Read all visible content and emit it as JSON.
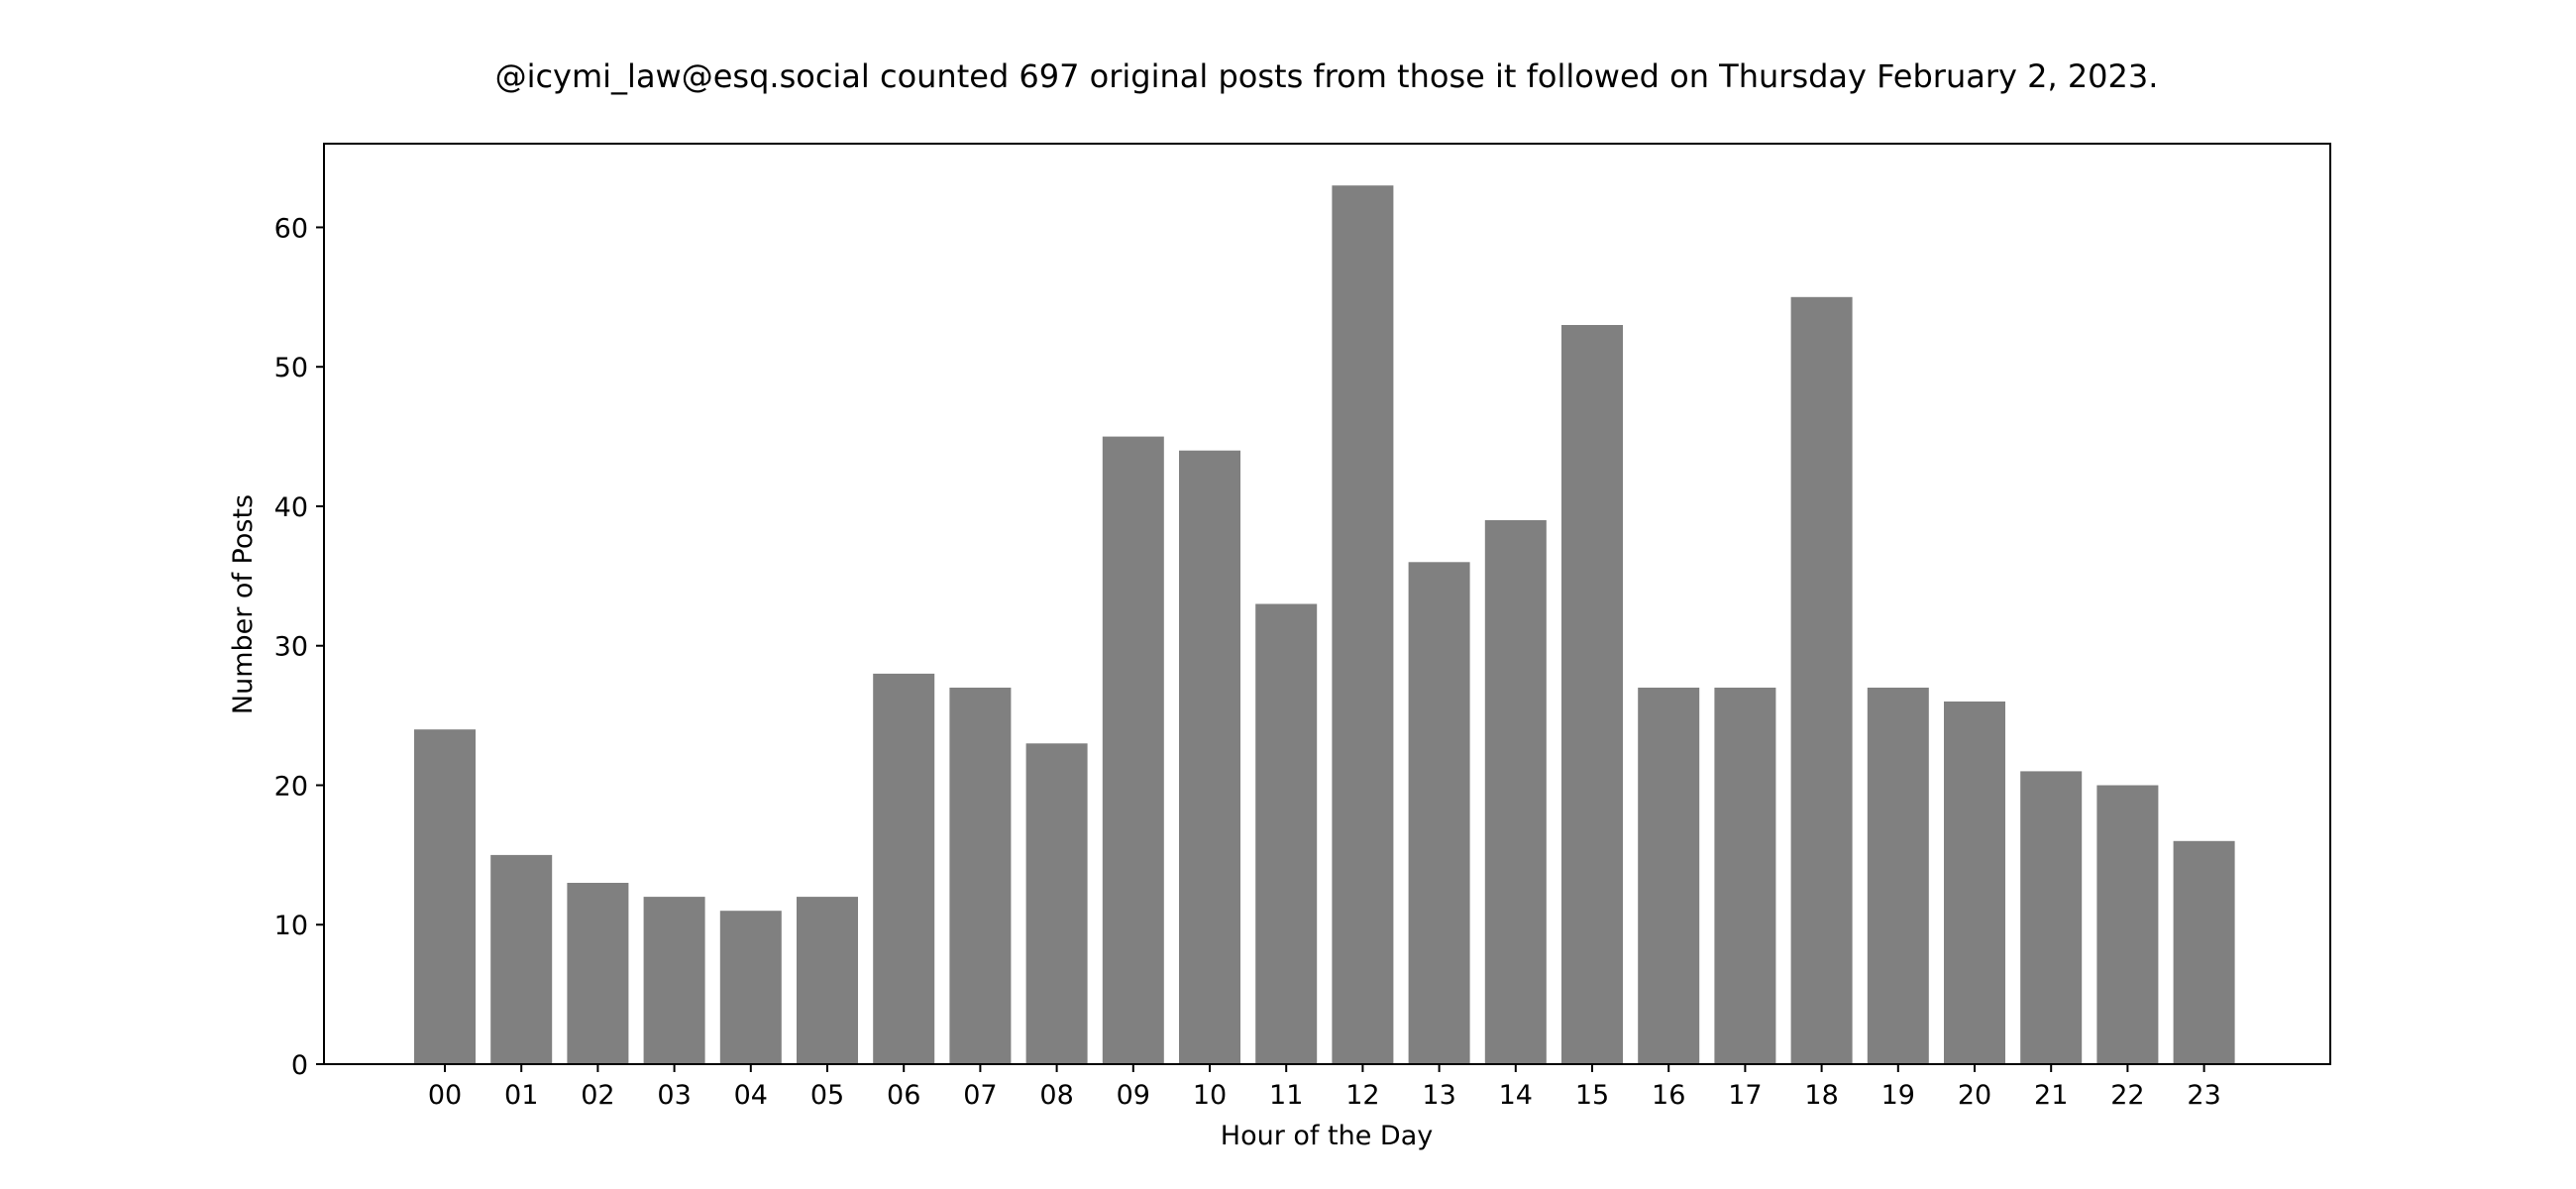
{
  "chart_data": {
    "type": "bar",
    "title": "@icymi_law@esq.social counted 697 original posts from those it followed on Thursday February 2, 2023.",
    "xlabel": "Hour of the Day",
    "ylabel": "Number of Posts",
    "categories": [
      "00",
      "01",
      "02",
      "03",
      "04",
      "05",
      "06",
      "07",
      "08",
      "09",
      "10",
      "11",
      "12",
      "13",
      "14",
      "15",
      "16",
      "17",
      "18",
      "19",
      "20",
      "21",
      "22",
      "23"
    ],
    "values": [
      24,
      15,
      13,
      12,
      11,
      12,
      28,
      27,
      23,
      45,
      44,
      33,
      63,
      36,
      39,
      53,
      27,
      27,
      55,
      27,
      26,
      21,
      20,
      16
    ],
    "ylim": [
      0,
      66
    ],
    "yticks": [
      "0",
      "10",
      "20",
      "30",
      "40",
      "50",
      "60"
    ],
    "bar_color": "#808080",
    "grid": false,
    "legend": "none"
  }
}
